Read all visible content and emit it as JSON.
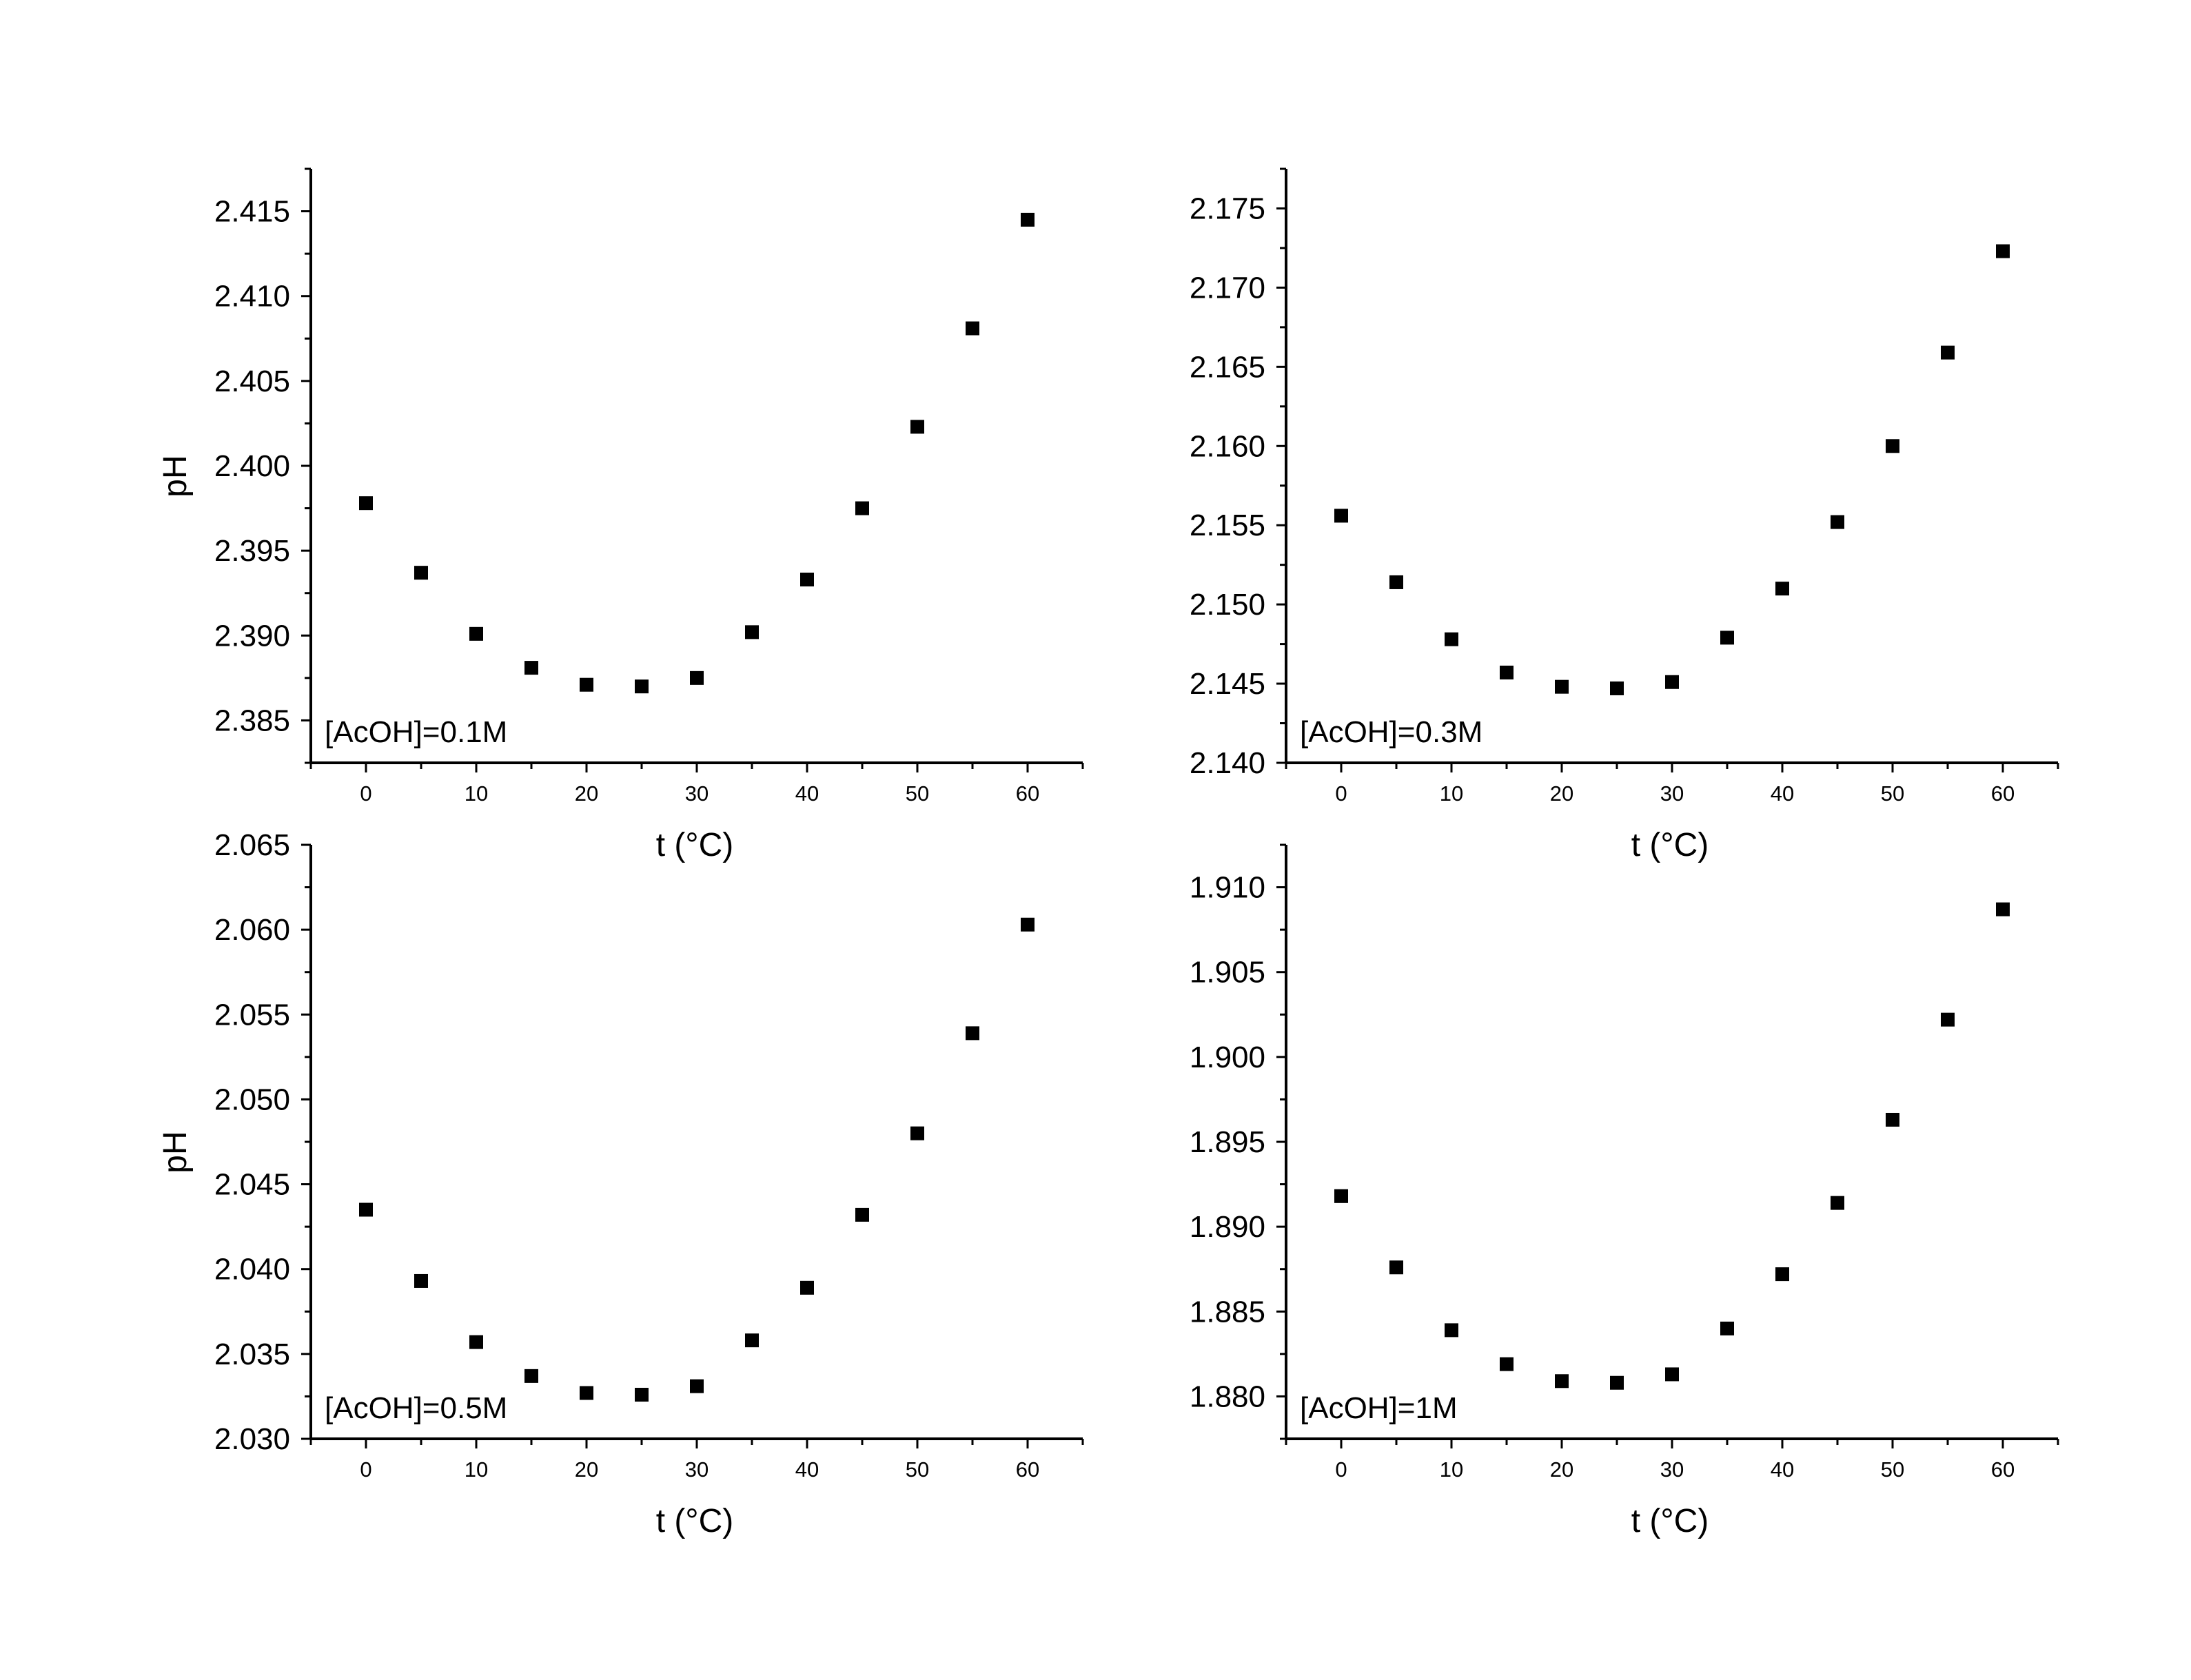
{
  "chart_data": [
    {
      "type": "scatter",
      "title": "",
      "xlabel": "t (°C)",
      "ylabel": "pH",
      "annotation": "[AcOH]=0.1M",
      "xlim": [
        -5,
        65
      ],
      "ylim": [
        2.3825,
        2.4175
      ],
      "xticks": [
        0,
        10,
        20,
        30,
        40,
        50,
        60
      ],
      "xtick_labels": [
        "0",
        "10",
        "20",
        "30",
        "40",
        "50",
        "60"
      ],
      "yticks": [
        2.385,
        2.39,
        2.395,
        2.4,
        2.405,
        2.41,
        2.415
      ],
      "ytick_labels": [
        "2.385",
        "2.390",
        "2.395",
        "2.400",
        "2.405",
        "2.410",
        "2.415"
      ],
      "marker": "square",
      "color": "#000000",
      "grid": false,
      "x": [
        0,
        5,
        10,
        15,
        20,
        25,
        30,
        35,
        40,
        45,
        50,
        55,
        60
      ],
      "y": [
        2.3978,
        2.3937,
        2.3901,
        2.3881,
        2.3871,
        2.387,
        2.3875,
        2.3902,
        2.3933,
        2.3975,
        2.4023,
        2.4081,
        2.4145
      ]
    },
    {
      "type": "scatter",
      "title": "",
      "xlabel": "t (°C)",
      "ylabel": "",
      "annotation": "[AcOH]=0.3M",
      "xlim": [
        -5,
        65
      ],
      "ylim": [
        2.14,
        2.1775
      ],
      "xticks": [
        0,
        10,
        20,
        30,
        40,
        50,
        60
      ],
      "xtick_labels": [
        "0",
        "10",
        "20",
        "30",
        "40",
        "50",
        "60"
      ],
      "yticks": [
        2.14,
        2.145,
        2.15,
        2.155,
        2.16,
        2.165,
        2.17,
        2.175
      ],
      "ytick_labels": [
        "2.140",
        "2.145",
        "2.150",
        "2.155",
        "2.160",
        "2.165",
        "2.170",
        "2.175"
      ],
      "marker": "square",
      "color": "#000000",
      "grid": false,
      "x": [
        0,
        5,
        10,
        15,
        20,
        25,
        30,
        35,
        40,
        45,
        50,
        55,
        60
      ],
      "y": [
        2.1556,
        2.1514,
        2.1478,
        2.1457,
        2.1448,
        2.1447,
        2.1451,
        2.1479,
        2.151,
        2.1552,
        2.16,
        2.1659,
        2.1723
      ]
    },
    {
      "type": "scatter",
      "title": "",
      "xlabel": "t (°C)",
      "ylabel": "pH",
      "annotation": "[AcOH]=0.5M",
      "xlim": [
        -5,
        65
      ],
      "ylim": [
        2.03,
        2.065
      ],
      "xticks": [
        0,
        10,
        20,
        30,
        40,
        50,
        60
      ],
      "xtick_labels": [
        "0",
        "10",
        "20",
        "30",
        "40",
        "50",
        "60"
      ],
      "yticks": [
        2.03,
        2.035,
        2.04,
        2.045,
        2.05,
        2.055,
        2.06,
        2.065
      ],
      "ytick_labels": [
        "2.030",
        "2.035",
        "2.040",
        "2.045",
        "2.050",
        "2.055",
        "2.060",
        "2.065"
      ],
      "marker": "square",
      "color": "#000000",
      "grid": false,
      "x": [
        0,
        5,
        10,
        15,
        20,
        25,
        30,
        35,
        40,
        45,
        50,
        55,
        60
      ],
      "y": [
        2.0435,
        2.0393,
        2.0357,
        2.0337,
        2.0327,
        2.0326,
        2.0331,
        2.0358,
        2.0389,
        2.0432,
        2.048,
        2.0539,
        2.0603
      ]
    },
    {
      "type": "scatter",
      "title": "",
      "xlabel": "t (°C)",
      "ylabel": "",
      "annotation": "[AcOH]=1M",
      "xlim": [
        -5,
        65
      ],
      "ylim": [
        1.8775,
        1.9125
      ],
      "xticks": [
        0,
        10,
        20,
        30,
        40,
        50,
        60
      ],
      "xtick_labels": [
        "0",
        "10",
        "20",
        "30",
        "40",
        "50",
        "60"
      ],
      "yticks": [
        1.88,
        1.885,
        1.89,
        1.895,
        1.9,
        1.905,
        1.91
      ],
      "ytick_labels": [
        "1.880",
        "1.885",
        "1.890",
        "1.895",
        "1.900",
        "1.905",
        "1.910"
      ],
      "marker": "square",
      "color": "#000000",
      "grid": false,
      "x": [
        0,
        5,
        10,
        15,
        20,
        25,
        30,
        35,
        40,
        45,
        50,
        55,
        60
      ],
      "y": [
        1.8918,
        1.8876,
        1.8839,
        1.8819,
        1.8809,
        1.8808,
        1.8813,
        1.884,
        1.8872,
        1.8914,
        1.8963,
        1.9022,
        1.9087
      ]
    }
  ]
}
